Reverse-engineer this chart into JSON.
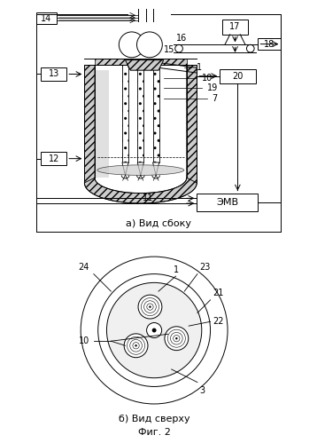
{
  "bg_color": "#ffffff",
  "line_color": "#000000",
  "label_a": "а) Вид сбоку",
  "label_b": "б) Вид сверху",
  "fig_label": "Фиг. 2",
  "font_size_label": 8,
  "font_size_num": 7,
  "font_size_fig": 8,
  "font_family": "DejaVu Sans"
}
